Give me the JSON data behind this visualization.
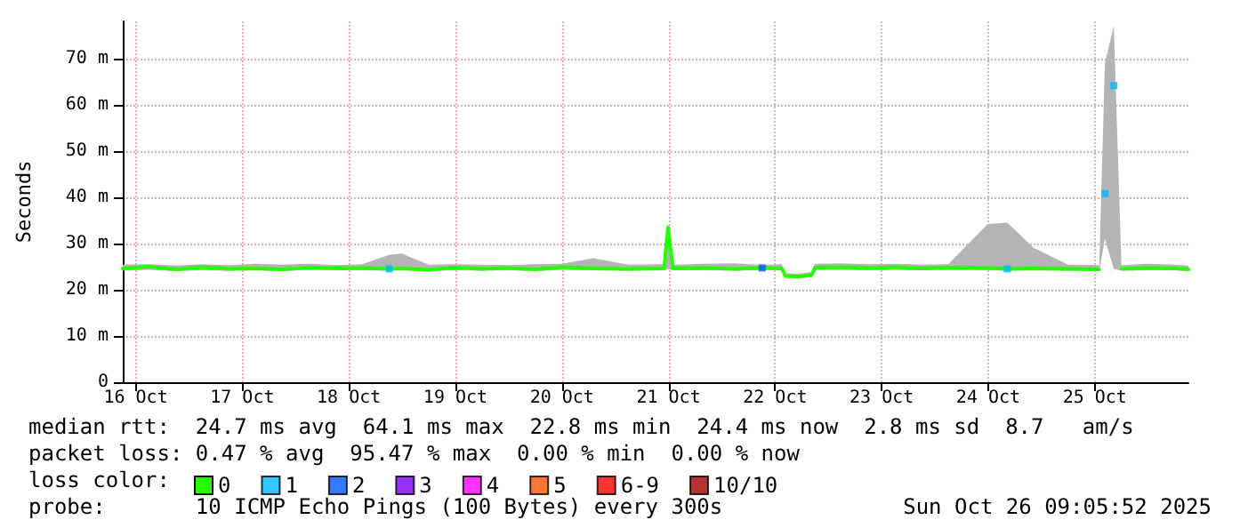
{
  "chart_data": {
    "type": "line",
    "ylabel": "Seconds",
    "legend_title": "loss color:",
    "legend": "bottom left",
    "grid": true,
    "marker": "none",
    "line_style": "solid",
    "xlim": [
      "2025-10-16T09:05",
      "2025-10-26T09:05"
    ],
    "xticks": [
      {
        "value": "2025-10-16T12:00",
        "label": "16 Oct"
      },
      {
        "value": "2025-10-17T12:00",
        "label": "17 Oct"
      },
      {
        "value": "2025-10-18T12:00",
        "label": "18 Oct"
      },
      {
        "value": "2025-10-19T12:00",
        "label": "19 Oct"
      },
      {
        "value": "2025-10-20T12:00",
        "label": "20 Oct"
      },
      {
        "value": "2025-10-21T12:00",
        "label": "21 Oct"
      },
      {
        "value": "2025-10-22T12:00",
        "label": "22 Oct"
      },
      {
        "value": "2025-10-23T12:00",
        "label": "23 Oct"
      },
      {
        "value": "2025-10-24T12:00",
        "label": "24 Oct"
      },
      {
        "value": "2025-10-25T12:00",
        "label": "25 Oct"
      }
    ],
    "ylim": [
      0,
      78
    ],
    "yticks": [
      0,
      {
        "value": 10,
        "label": "10 m"
      },
      {
        "value": 20,
        "label": "20 m"
      },
      {
        "value": 30,
        "label": "30 m"
      },
      {
        "value": 40,
        "label": "40 m"
      },
      {
        "value": 50,
        "label": "50 m"
      },
      {
        "value": 60,
        "label": "60 m"
      },
      {
        "value": 70,
        "label": "70 m"
      }
    ],
    "annotations": [
      "median rtt:  24.7 ms avg  64.1 ms max  22.8 ms min  24.4 ms now  2.8 ms sd  8.7   am/s",
      "packet loss: 0.47 % avg  95.47 % max  0.00 % min  0.00 % now",
      "probe:       10 ICMP Echo Pings (100 Bytes) every 300s",
      "Sun Oct 26 09:05:52 2025"
    ],
    "series": [
      {
        "name": "0",
        "color": "#26ff00",
        "x": [
          "2025-10-16T09:05",
          "2025-10-16T15:00",
          "2025-10-16T21:00",
          "2025-10-17T03:00",
          "2025-10-17T09:00",
          "2025-10-17T15:00",
          "2025-10-17T21:00",
          "2025-10-18T03:00",
          "2025-10-18T09:00",
          "2025-10-18T15:00",
          "2025-10-18T21:05",
          "2025-10-18T23:53",
          "2025-10-19T06:00",
          "2025-10-19T12:00",
          "2025-10-19T18:00",
          "2025-10-20T00:00",
          "2025-10-20T06:00",
          "2025-10-20T12:00",
          "2025-10-20T19:05",
          "2025-10-21T03:00",
          "2025-10-21T11:00",
          "2025-10-21T11:53",
          "2025-10-21T13:00",
          "2025-10-21T20:00",
          "2025-10-22T03:00",
          "2025-10-22T09:05",
          "2025-10-22T13:30",
          "2025-10-22T14:17",
          "2025-10-22T17:00",
          "2025-10-22T20:17",
          "2025-10-22T21:00",
          "2025-10-23T03:00",
          "2025-10-23T09:00",
          "2025-10-23T15:00",
          "2025-10-23T21:00",
          "2025-10-24T03:00",
          "2025-10-24T11:53",
          "2025-10-24T16:17",
          "2025-10-24T22:17",
          "2025-10-25T06:00",
          "2025-10-25T13:00",
          "2025-10-25T14:17",
          "2025-10-25T16:17",
          "2025-10-25T18:00",
          "2025-10-26T00:00",
          "2025-10-26T06:00",
          "2025-10-26T09:05"
        ],
        "values": [
          24.6,
          25.0,
          24.4,
          24.9,
          24.5,
          24.6,
          24.4,
          24.8,
          24.6,
          24.7,
          24.5,
          24.6,
          24.3,
          24.8,
          24.5,
          24.7,
          24.4,
          24.9,
          24.6,
          24.5,
          24.6,
          33.5,
          24.6,
          24.7,
          24.5,
          24.7,
          24.6,
          23.0,
          22.8,
          23.2,
          24.8,
          24.9,
          24.7,
          24.9,
          24.6,
          24.8,
          24.7,
          24.5,
          24.6,
          24.5,
          24.4,
          null,
          null,
          24.5,
          24.7,
          24.6,
          24.4
        ],
        "lower": [
          24.1,
          24.3,
          24.0,
          24.2,
          24.1,
          24.2,
          24.0,
          24.3,
          24.2,
          24.2,
          24.1,
          24.2,
          24.0,
          24.2,
          24.1,
          24.2,
          24.0,
          24.3,
          24.2,
          24.1,
          24.2,
          24.5,
          24.2,
          24.2,
          24.1,
          24.3,
          24.2,
          22.6,
          22.5,
          22.7,
          24.3,
          24.3,
          24.2,
          24.3,
          24.2,
          24.3,
          24.2,
          24.1,
          24.2,
          24.1,
          24.0,
          31.0,
          24.5,
          24.1,
          24.2,
          24.2,
          24.0
        ],
        "upper": [
          25.4,
          25.5,
          25.2,
          25.5,
          25.3,
          25.6,
          25.4,
          25.6,
          25.3,
          25.5,
          27.5,
          27.8,
          25.4,
          25.5,
          25.4,
          25.3,
          25.5,
          25.6,
          26.8,
          25.4,
          25.5,
          34.0,
          25.4,
          25.6,
          25.7,
          25.3,
          25.5,
          23.6,
          23.4,
          23.8,
          25.6,
          25.7,
          25.5,
          25.6,
          25.4,
          25.5,
          34.2,
          34.5,
          29.0,
          25.4,
          25.3,
          69.0,
          77.0,
          25.3,
          25.6,
          25.4,
          25.2
        ]
      },
      {
        "name": "1",
        "type": "scatter",
        "marker": "square",
        "color": "#00b8ff",
        "x": [
          "2025-10-18T21:05",
          "2025-10-24T16:17",
          "2025-10-25T14:17",
          "2025-10-25T16:17"
        ],
        "values": [
          24.5,
          24.5,
          40.8,
          64.1
        ]
      },
      {
        "name": "2",
        "type": "scatter",
        "marker": "square",
        "color": "#0059ff",
        "x": [
          "2025-10-22T09:05"
        ],
        "values": [
          24.7
        ]
      },
      {
        "name": "3",
        "type": "scatter",
        "marker": "square",
        "color": "#7e00ff"
      },
      {
        "name": "4",
        "type": "scatter",
        "marker": "square",
        "color": "#ff00ff"
      },
      {
        "name": "5",
        "type": "scatter",
        "marker": "square",
        "color": "#ff5500"
      },
      {
        "name": "6-9",
        "type": "scatter",
        "marker": "square",
        "color": "#ff0000"
      },
      {
        "name": "10/10",
        "type": "scatter",
        "marker": "square",
        "color": "#a10000"
      }
    ]
  }
}
